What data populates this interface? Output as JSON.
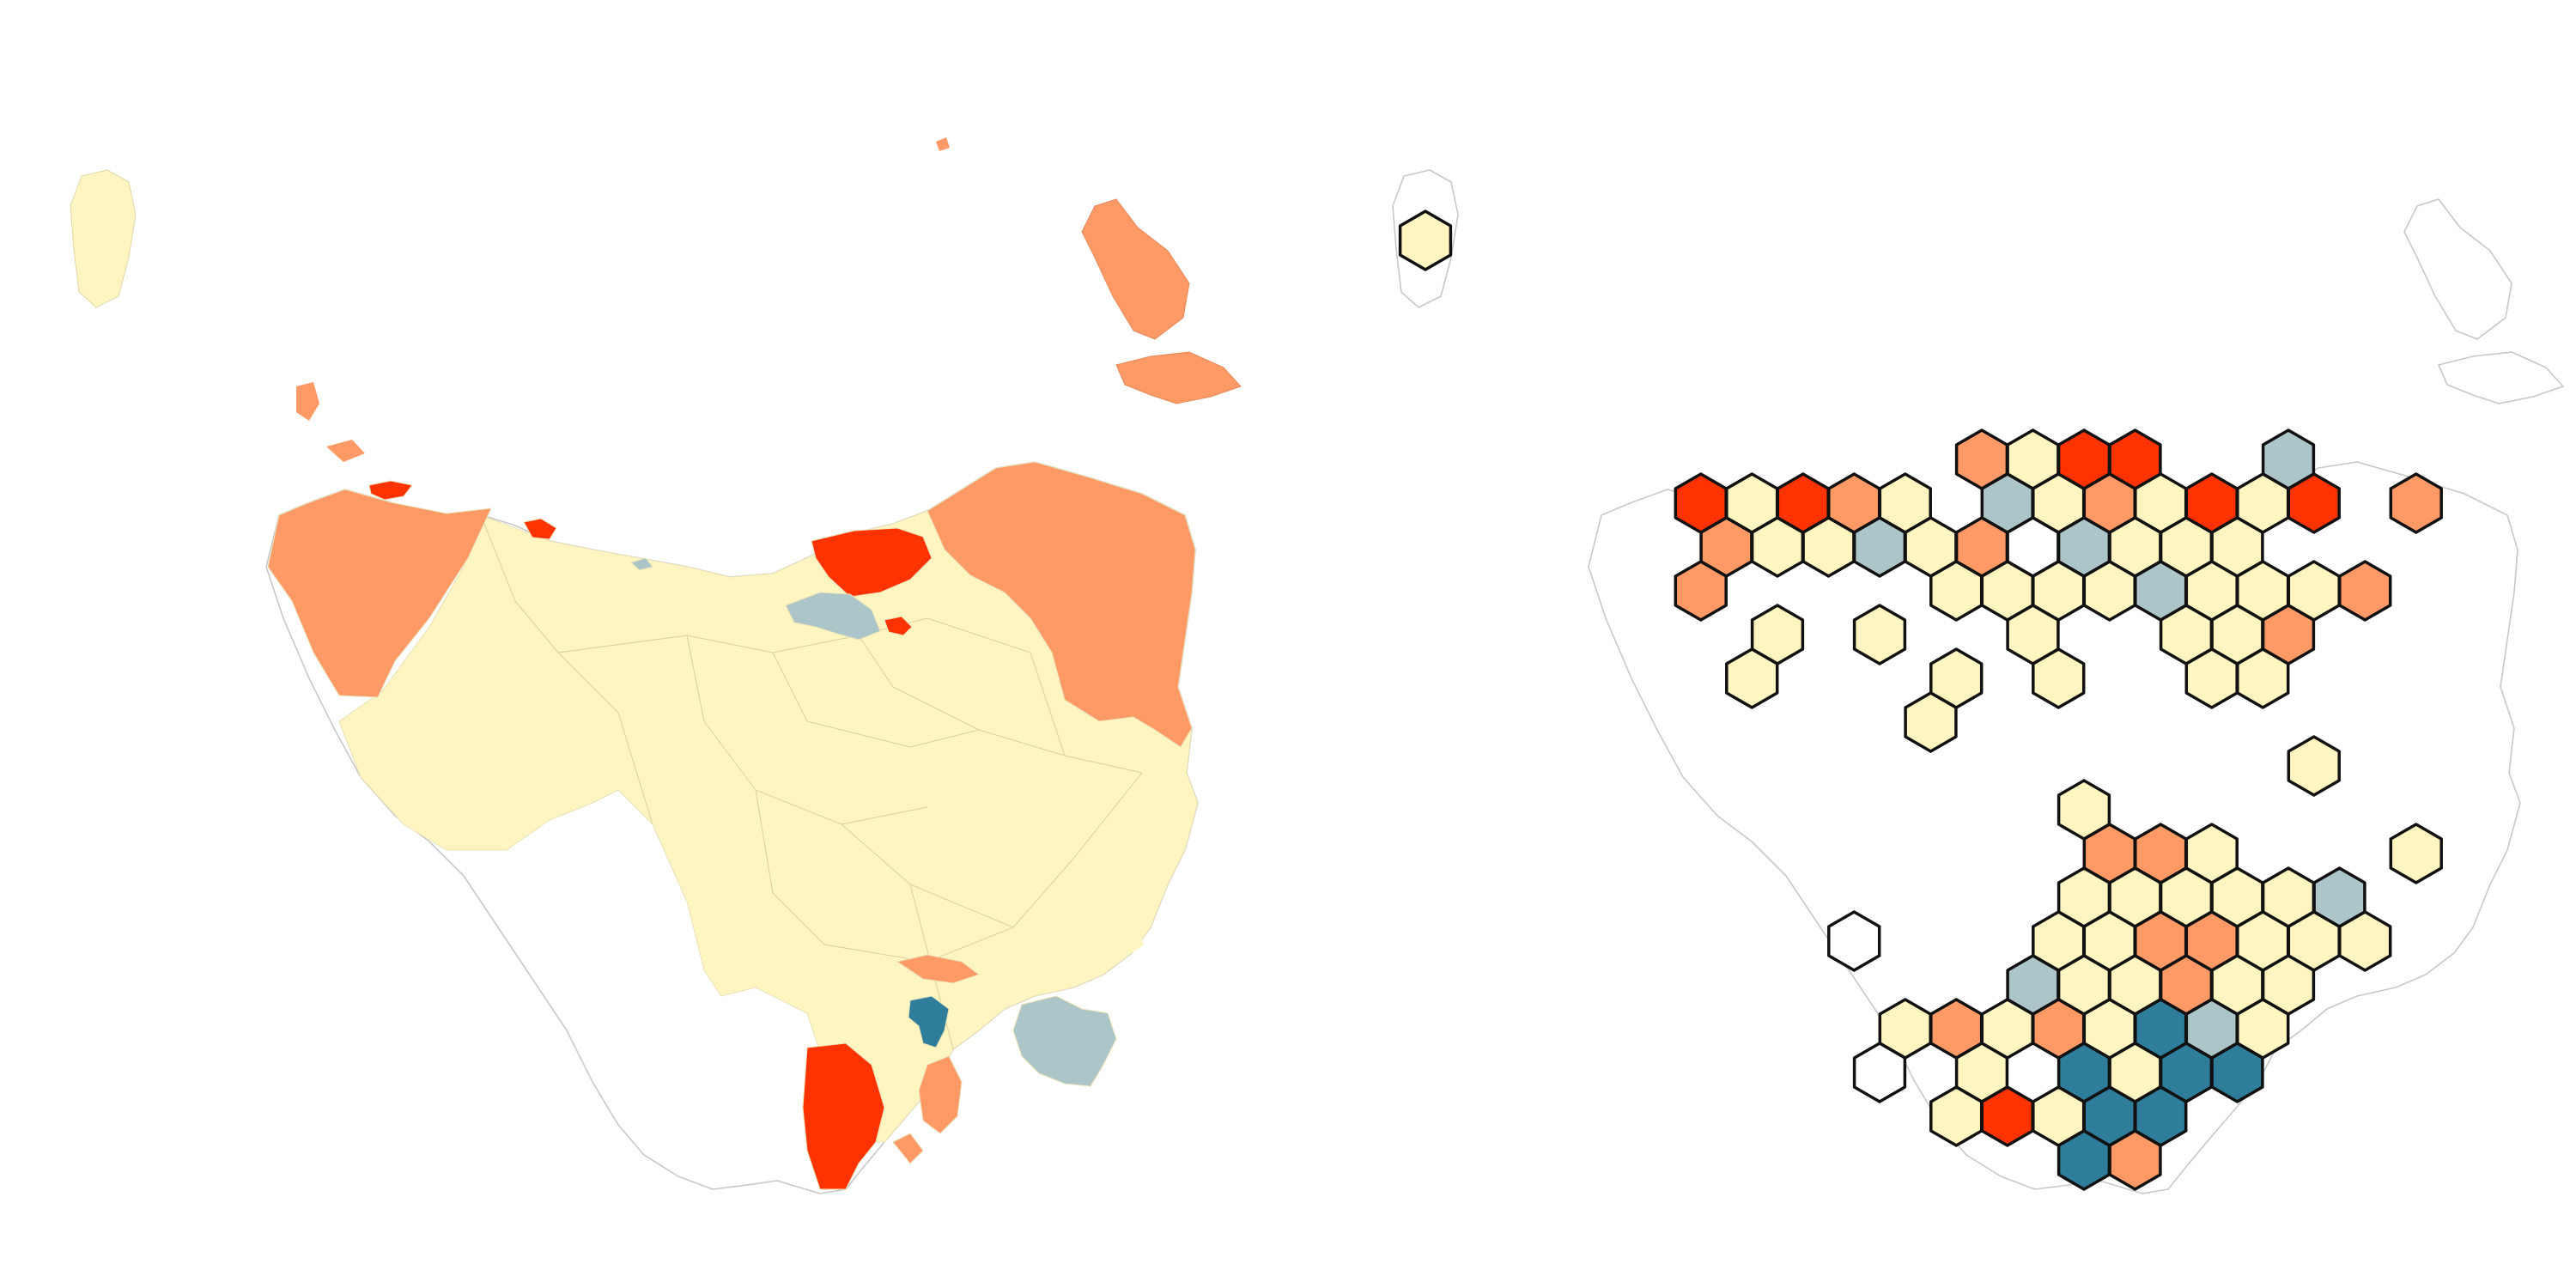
{
  "palette": {
    "c0": "#FFFFFF",
    "c1": "#FFF5C0",
    "c2": "#ACC5C8",
    "c3": "#FF9966",
    "c4": "#FF3300",
    "c5": "#2E7D9B"
  },
  "maps": [
    {
      "name": "choropleth-map",
      "type": "geographic-choropleth"
    },
    {
      "name": "hexagon-map",
      "type": "hex-grid-cartogram"
    }
  ],
  "hex_grid": {
    "cells": [
      [
        "c1",
        0,
        0
      ],
      [
        "c3",
        12,
        5
      ],
      [
        "c1",
        13,
        5
      ],
      [
        "c4",
        14,
        5
      ],
      [
        "c4",
        15,
        5
      ],
      [
        "c2",
        18,
        5
      ],
      [
        "c4",
        6,
        6
      ],
      [
        "c1",
        7,
        6
      ],
      [
        "c4",
        8,
        6
      ],
      [
        "c3",
        9,
        6
      ],
      [
        "c1",
        10,
        6
      ],
      [
        "c2",
        12,
        6
      ],
      [
        "c1",
        13,
        6
      ],
      [
        "c3",
        14,
        6
      ],
      [
        "c1",
        15,
        6
      ],
      [
        "c4",
        16,
        6
      ],
      [
        "c1",
        17,
        6
      ],
      [
        "c4",
        18,
        6
      ],
      [
        "c3",
        20,
        6
      ],
      [
        "c3",
        7,
        7
      ],
      [
        "c1",
        8,
        7
      ],
      [
        "c1",
        9,
        7
      ],
      [
        "c2",
        10,
        7
      ],
      [
        "c1",
        11,
        7
      ],
      [
        "c3",
        12,
        7
      ],
      [
        "c0",
        13,
        7
      ],
      [
        "c2",
        14,
        7
      ],
      [
        "c1",
        15,
        7
      ],
      [
        "c1",
        16,
        7
      ],
      [
        "c1",
        17,
        7
      ],
      [
        "c3",
        6,
        8
      ],
      [
        "c1",
        11,
        8
      ],
      [
        "c1",
        12,
        8
      ],
      [
        "c1",
        13,
        8
      ],
      [
        "c1",
        14,
        8
      ],
      [
        "c2",
        15,
        8
      ],
      [
        "c1",
        16,
        8
      ],
      [
        "c1",
        17,
        8
      ],
      [
        "c1",
        18,
        8
      ],
      [
        "c3",
        19,
        8
      ],
      [
        "c1",
        8,
        9
      ],
      [
        "c1",
        10,
        9
      ],
      [
        "c1",
        13,
        9
      ],
      [
        "c1",
        16,
        9
      ],
      [
        "c1",
        17,
        9
      ],
      [
        "c3",
        18,
        9
      ],
      [
        "c1",
        7,
        10
      ],
      [
        "c1",
        11,
        10
      ],
      [
        "c1",
        13,
        10
      ],
      [
        "c1",
        16,
        10
      ],
      [
        "c1",
        17,
        10
      ],
      [
        "c1",
        11,
        11
      ],
      [
        "c1",
        18,
        12
      ],
      [
        "c1",
        14,
        13
      ],
      [
        "c3",
        14,
        14
      ],
      [
        "c3",
        15,
        14
      ],
      [
        "c1",
        16,
        14
      ],
      [
        "c1",
        20,
        14
      ],
      [
        "c1",
        14,
        15
      ],
      [
        "c1",
        15,
        15
      ],
      [
        "c1",
        16,
        15
      ],
      [
        "c1",
        17,
        15
      ],
      [
        "c1",
        18,
        15
      ],
      [
        "c2",
        19,
        15
      ],
      [
        "c0",
        9,
        16
      ],
      [
        "c1",
        13,
        16
      ],
      [
        "c1",
        14,
        16
      ],
      [
        "c3",
        15,
        16
      ],
      [
        "c3",
        16,
        16
      ],
      [
        "c1",
        17,
        16
      ],
      [
        "c1",
        18,
        16
      ],
      [
        "c1",
        19,
        16
      ],
      [
        "c2",
        13,
        17
      ],
      [
        "c1",
        14,
        17
      ],
      [
        "c1",
        15,
        17
      ],
      [
        "c3",
        16,
        17
      ],
      [
        "c1",
        17,
        17
      ],
      [
        "c1",
        18,
        17
      ],
      [
        "c1",
        10,
        18
      ],
      [
        "c3",
        11,
        18
      ],
      [
        "c1",
        12,
        18
      ],
      [
        "c3",
        13,
        18
      ],
      [
        "c1",
        14,
        18
      ],
      [
        "c5",
        15,
        18
      ],
      [
        "c2",
        16,
        18
      ],
      [
        "c1",
        17,
        18
      ],
      [
        "c0",
        10,
        19
      ],
      [
        "c1",
        12,
        19
      ],
      [
        "c5",
        14,
        19
      ],
      [
        "c1",
        15,
        19
      ],
      [
        "c5",
        16,
        19
      ],
      [
        "c5",
        17,
        19
      ],
      [
        "c1",
        11,
        20
      ],
      [
        "c4",
        12,
        20
      ],
      [
        "c1",
        13,
        20
      ],
      [
        "c5",
        14,
        20
      ],
      [
        "c5",
        15,
        20
      ],
      [
        "c5",
        14,
        21
      ],
      [
        "c3",
        15,
        21
      ]
    ]
  }
}
